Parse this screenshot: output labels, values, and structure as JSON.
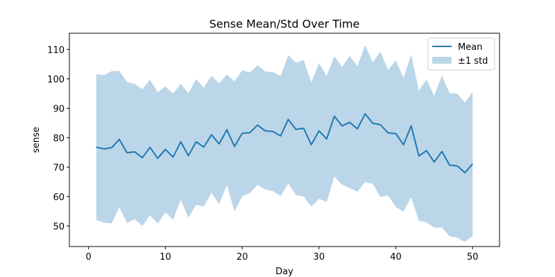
{
  "chart_data": {
    "type": "area",
    "title": "Sense Mean/Std Over Time",
    "xlabel": "Day",
    "ylabel": "sense",
    "xlim": [
      -2.5,
      53.5
    ],
    "ylim": [
      43,
      115.5
    ],
    "xticks": [
      0,
      10,
      20,
      30,
      40,
      50
    ],
    "yticks": [
      50,
      60,
      70,
      80,
      90,
      100,
      110
    ],
    "grid": false,
    "legend_position": "top-right",
    "x": [
      1,
      2,
      3,
      4,
      5,
      6,
      7,
      8,
      9,
      10,
      11,
      12,
      13,
      14,
      15,
      16,
      17,
      18,
      19,
      20,
      21,
      22,
      23,
      24,
      25,
      26,
      27,
      28,
      29,
      30,
      31,
      32,
      33,
      34,
      35,
      36,
      37,
      38,
      39,
      40,
      41,
      42,
      43,
      44,
      45,
      46,
      47,
      48,
      49,
      50
    ],
    "series": [
      {
        "name": "Mean",
        "kind": "line",
        "color": "#1f77b4",
        "values": [
          76.8,
          76.2,
          76.6,
          79.4,
          74.9,
          75.2,
          73.2,
          76.7,
          73.0,
          76.0,
          73.4,
          78.6,
          73.9,
          78.6,
          76.8,
          81.0,
          77.9,
          82.7,
          77.0,
          81.5,
          81.7,
          84.3,
          82.3,
          82.1,
          80.6,
          86.2,
          82.8,
          83.2,
          77.6,
          82.3,
          79.6,
          87.3,
          84.0,
          85.2,
          83.0,
          88.1,
          84.9,
          84.4,
          81.6,
          81.4,
          77.6,
          84.0,
          73.8,
          75.6,
          71.7,
          75.3,
          70.7,
          70.4,
          68.1,
          71.1
        ]
      },
      {
        "name": "±1 std",
        "kind": "band",
        "color": "#1f77b4",
        "opacity": 0.3,
        "upper": [
          101.6,
          101.3,
          102.6,
          102.7,
          99.0,
          98.3,
          96.4,
          99.8,
          95.4,
          97.4,
          95.0,
          98.3,
          95.1,
          99.9,
          97.0,
          101.0,
          98.5,
          101.5,
          99.2,
          102.9,
          102.2,
          104.6,
          102.5,
          102.3,
          100.9,
          108.1,
          105.5,
          106.4,
          98.8,
          105.4,
          101.0,
          107.7,
          104.0,
          107.8,
          104.3,
          111.5,
          105.6,
          109.2,
          103.0,
          106.4,
          100.3,
          108.3,
          96.0,
          99.8,
          94.2,
          101.1,
          95.2,
          95.0,
          91.9,
          95.6
        ],
        "lower": [
          52.0,
          51.1,
          50.9,
          56.4,
          51.0,
          52.3,
          50.0,
          53.6,
          50.8,
          54.6,
          52.1,
          58.9,
          52.8,
          57.2,
          56.6,
          61.2,
          57.4,
          63.9,
          54.9,
          60.1,
          61.2,
          64.0,
          62.4,
          61.8,
          60.2,
          64.4,
          60.5,
          60.0,
          56.6,
          59.2,
          58.2,
          66.8,
          64.0,
          62.9,
          61.6,
          64.9,
          64.3,
          59.8,
          60.4,
          56.4,
          54.9,
          59.7,
          51.7,
          51.2,
          49.4,
          49.5,
          46.5,
          46.0,
          44.6,
          46.6
        ]
      }
    ]
  }
}
